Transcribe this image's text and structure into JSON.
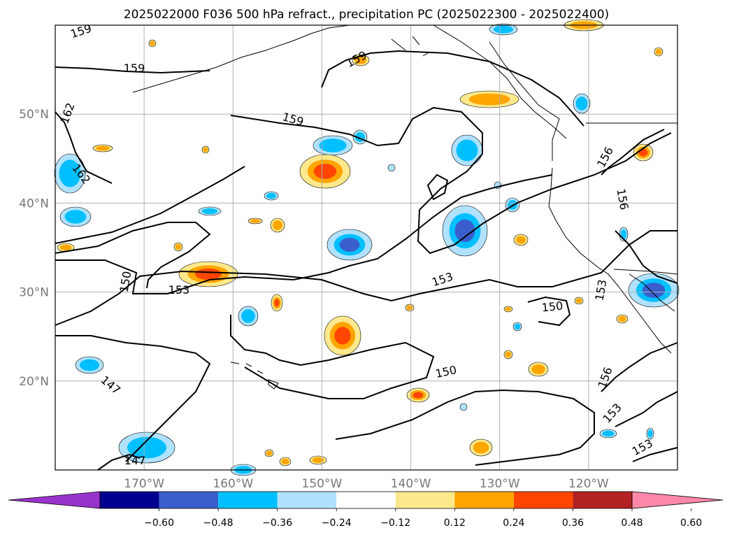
{
  "chart_data": {
    "type": "contour-map",
    "title": "2025022000 F036 500 hPa refract., precipitation PC (2025022300 - 2025022400)",
    "lon_ticks": [
      "170°W",
      "160°W",
      "150°W",
      "140°W",
      "130°W",
      "120°W"
    ],
    "lat_ticks": [
      "20°N",
      "30°N",
      "40°N",
      "50°N"
    ],
    "xlim": [
      -180,
      -110
    ],
    "ylim": [
      10,
      60
    ],
    "grid": true,
    "colorbar": {
      "ticks": [
        "−0.60",
        "−0.48",
        "−0.36",
        "−0.24",
        "−0.12",
        "0.12",
        "0.24",
        "0.36",
        "0.48",
        "0.60"
      ],
      "levels": [
        -0.6,
        -0.48,
        -0.36,
        -0.24,
        -0.12,
        0.12,
        0.24,
        0.36,
        0.48,
        0.6
      ],
      "colors": [
        "#9933cc",
        "#000090",
        "#3a5fcd",
        "#00bfff",
        "#b0e2ff",
        "#ffffff",
        "#fde98b",
        "#ffa500",
        "#ff4500",
        "#b22222",
        "#ff88aa"
      ],
      "extend": "both"
    },
    "contour_labels": [
      "159",
      "159",
      "159",
      "162",
      "162",
      "159",
      "156",
      "156",
      "153",
      "150",
      "153",
      "150",
      "150",
      "147",
      "147",
      "156",
      "153",
      "153",
      "153"
    ]
  }
}
